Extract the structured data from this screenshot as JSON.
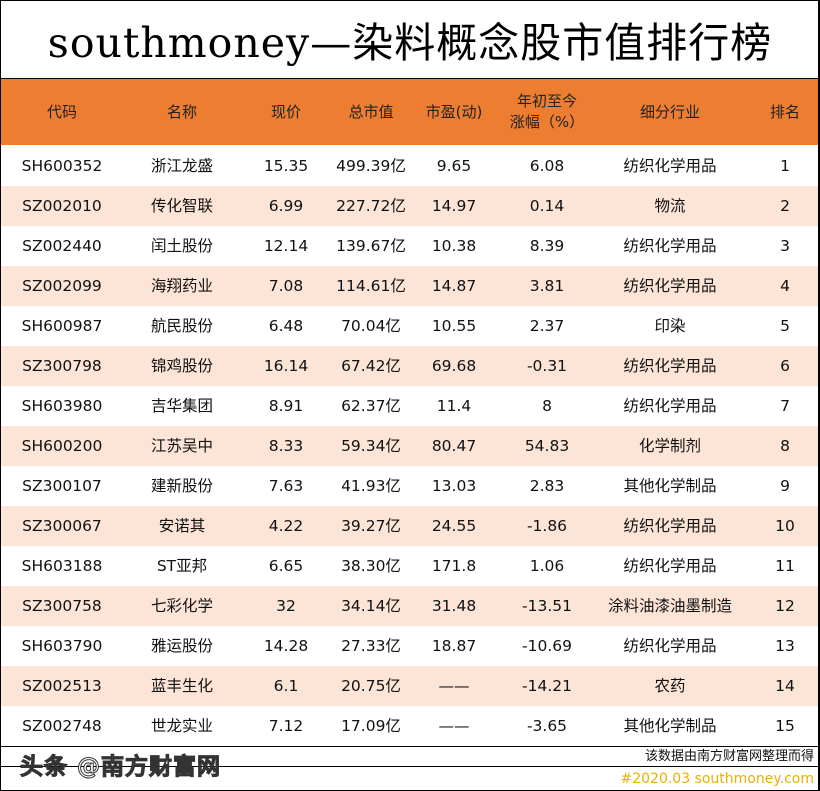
{
  "title": "southmoney—染料概念股市值排行榜",
  "columns": [
    "代码",
    "名称",
    "现价",
    "总市值",
    "市盈(动)",
    "年初至今涨幅（%）",
    "细分行业",
    "排名"
  ],
  "column_ytd_line1": "年初至今",
  "column_ytd_line2": "涨幅（%）",
  "header_color": "#ED7D31",
  "alt_row_color": "#FCE4D6",
  "rows": [
    [
      "SH600352",
      "浙江龙盛",
      "15.35",
      "499.39亿",
      "9.65",
      "6.08",
      "纺织化学用品",
      "1"
    ],
    [
      "SZ002010",
      "传化智联",
      "6.99",
      "227.72亿",
      "14.97",
      "0.14",
      "物流",
      "2"
    ],
    [
      "SZ002440",
      "闰土股份",
      "12.14",
      "139.67亿",
      "10.38",
      "8.39",
      "纺织化学用品",
      "3"
    ],
    [
      "SZ002099",
      "海翔药业",
      "7.08",
      "114.61亿",
      "14.87",
      "3.81",
      "纺织化学用品",
      "4"
    ],
    [
      "SH600987",
      "航民股份",
      "6.48",
      "70.04亿",
      "10.55",
      "2.37",
      "印染",
      "5"
    ],
    [
      "SZ300798",
      "锦鸡股份",
      "16.14",
      "67.42亿",
      "69.68",
      "-0.31",
      "纺织化学用品",
      "6"
    ],
    [
      "SH603980",
      "吉华集团",
      "8.91",
      "62.37亿",
      "11.4",
      "8",
      "纺织化学用品",
      "7"
    ],
    [
      "SH600200",
      "江苏吴中",
      "8.33",
      "59.34亿",
      "80.47",
      "54.83",
      "化学制剂",
      "8"
    ],
    [
      "SZ300107",
      "建新股份",
      "7.63",
      "41.93亿",
      "13.03",
      "2.83",
      "其他化学制品",
      "9"
    ],
    [
      "SZ300067",
      "安诺其",
      "4.22",
      "39.27亿",
      "24.55",
      "-1.86",
      "纺织化学用品",
      "10"
    ],
    [
      "SH603188",
      "ST亚邦",
      "6.65",
      "38.30亿",
      "171.8",
      "1.06",
      "纺织化学用品",
      "11"
    ],
    [
      "SZ300758",
      "七彩化学",
      "32",
      "34.14亿",
      "31.48",
      "-13.51",
      "涂料油漆油墨制造",
      "12"
    ],
    [
      "SH603790",
      "雅运股份",
      "14.28",
      "27.33亿",
      "18.87",
      "-10.69",
      "纺织化学用品",
      "13"
    ],
    [
      "SZ002513",
      "蓝丰生化",
      "6.1",
      "20.75亿",
      "——",
      "-14.21",
      "农药",
      "14"
    ],
    [
      "SZ002748",
      "世龙实业",
      "7.12",
      "17.09亿",
      "——",
      "-3.65",
      "其他化学制品",
      "15"
    ]
  ],
  "footnote": "该数据由南方财富网整理而得",
  "source": "#2020.03 southmoney.com",
  "watermark": "头条 @南方财富网"
}
